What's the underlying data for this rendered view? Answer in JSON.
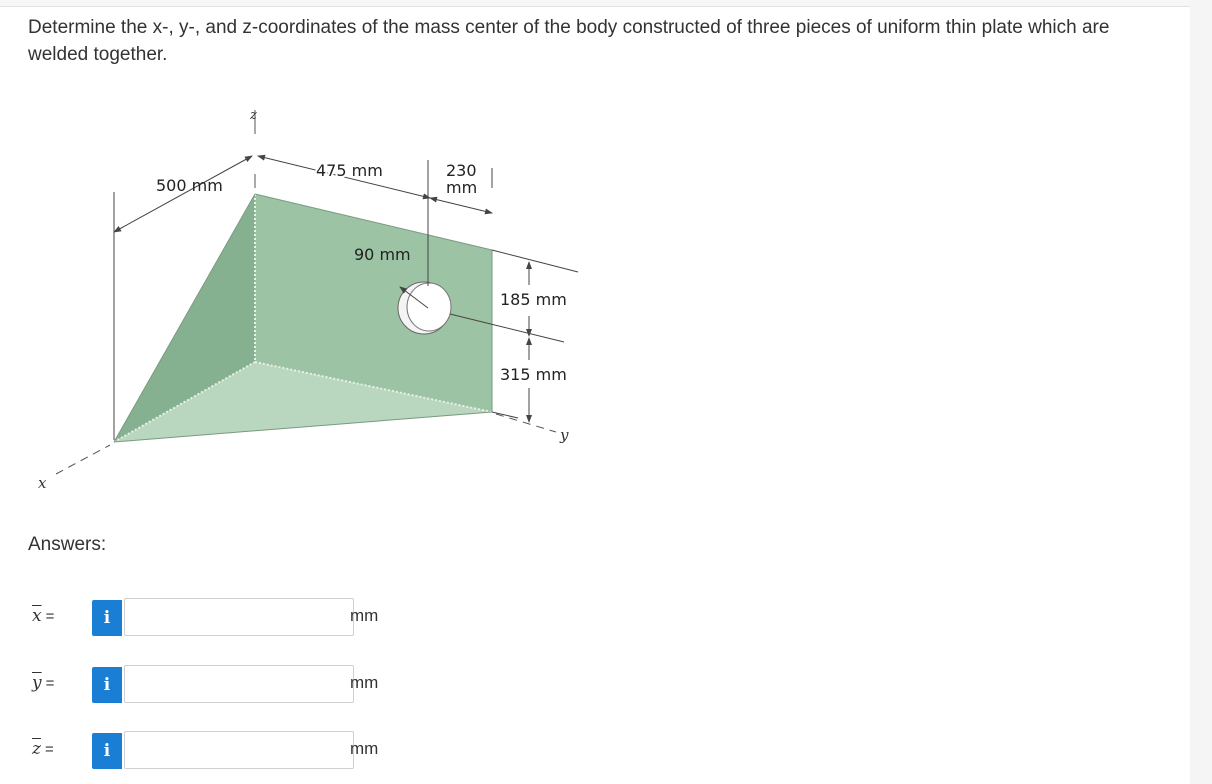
{
  "question": "Determine the x-, y-, and z-coordinates of the mass center of the body constructed of three pieces of uniform thin plate which are welded together.",
  "figure": {
    "axis_x": "x",
    "axis_y": "y",
    "axis_z": "z",
    "dim_500": "500 mm",
    "dim_475": "475 mm",
    "dim_230_top": "230",
    "dim_230_bottom": "mm",
    "dim_90": "90 mm",
    "dim_185": "185 mm",
    "dim_315": "315 mm",
    "colors": {
      "plate_left": "#86b190",
      "plate_back": "#9cc3a4",
      "plate_bottom": "#b9d6be"
    }
  },
  "answers": {
    "label": "Answers:",
    "rows": [
      {
        "var": "x",
        "eq": "=",
        "unit": "mm",
        "value": ""
      },
      {
        "var": "y",
        "eq": "=",
        "unit": "mm",
        "value": ""
      },
      {
        "var": "z",
        "eq": "=",
        "unit": "mm",
        "value": ""
      }
    ],
    "info_glyph": "i"
  }
}
